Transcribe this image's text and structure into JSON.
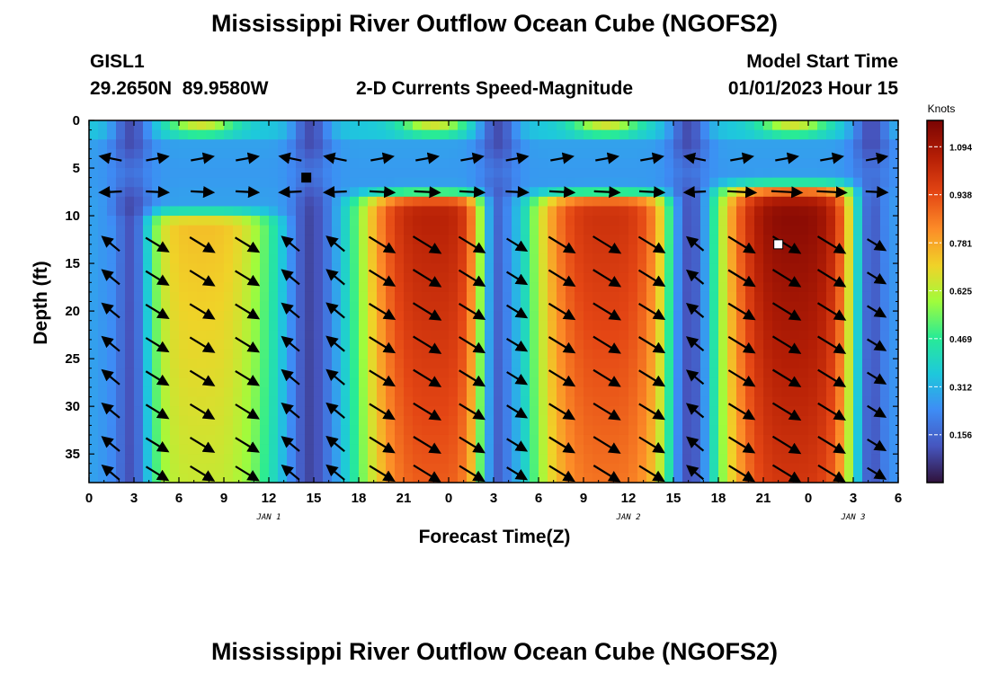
{
  "header": {
    "title": "Mississippi River Outflow Ocean Cube (NGOFS2)",
    "station_id": "GISL1",
    "station_coords": "29.2650N  89.9580W",
    "plot_label": "2-D Currents Speed-Magnitude",
    "model_start_label": "Model Start Time",
    "model_start_value": "01/01/2023 Hour 15"
  },
  "footer": {
    "title": "Mississippi River Outflow Ocean Cube (NGOFS2)"
  },
  "chart_data": {
    "type": "heatmap",
    "title": "2-D Currents Speed-Magnitude",
    "xlabel": "Forecast Time(Z)",
    "ylabel": "Depth (ft)",
    "x_ticks": [
      "0",
      "3",
      "6",
      "9",
      "12",
      "15",
      "18",
      "21",
      "0",
      "3",
      "6",
      "9",
      "12",
      "15",
      "18",
      "21",
      "0",
      "3",
      "6"
    ],
    "x_range_hours": [
      0,
      54
    ],
    "day_labels": [
      {
        "label": "JAN 1",
        "hour": 12
      },
      {
        "label": "JAN 2",
        "hour": 36
      },
      {
        "label": "JAN 3",
        "hour": 51
      }
    ],
    "y_ticks": [
      "0",
      "5",
      "10",
      "15",
      "20",
      "25",
      "30",
      "35"
    ],
    "y_range_ft": [
      0,
      38
    ],
    "y_inverted": true,
    "colorbar": {
      "unit": "Knots",
      "range": [
        0.0,
        1.18
      ],
      "ticks": [
        "1.094",
        "0.938",
        "0.781",
        "0.625",
        "0.469",
        "0.312",
        "0.156"
      ]
    },
    "speed_peaks_knots": [
      {
        "center_hour": 7.5,
        "depth_from_ft": 11,
        "depth_to_ft": 38,
        "max": 0.74
      },
      {
        "center_hour": 23,
        "depth_from_ft": 9,
        "depth_to_ft": 38,
        "max": 1.06
      },
      {
        "center_hour": 34.5,
        "depth_from_ft": 9,
        "depth_to_ft": 38,
        "max": 1.01
      },
      {
        "center_hour": 47,
        "depth_from_ft": 8,
        "depth_to_ft": 38,
        "max": 1.16
      }
    ],
    "slack_hours": [
      2.8,
      14.8,
      27.3,
      40.0,
      52.2
    ],
    "arrow_rows_ft": [
      4,
      7.5,
      13,
      16.5,
      20,
      23.5,
      27,
      30.5,
      34,
      37
    ],
    "marker_points": [
      {
        "hour": 14.5,
        "depth_ft": 6,
        "color": "#000000"
      },
      {
        "hour": 46,
        "depth_ft": 13,
        "color": "#ffffff"
      }
    ]
  }
}
